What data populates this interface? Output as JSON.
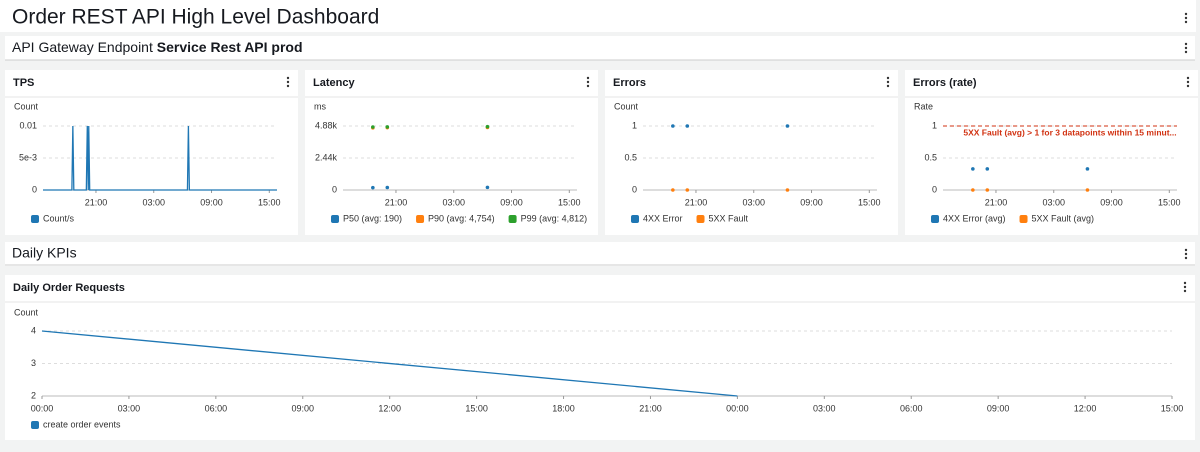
{
  "header": {
    "title": "Order REST API High Level Dashboard"
  },
  "sections": [
    {
      "label": "API Gateway Endpoint",
      "name": "Service Rest API prod"
    },
    {
      "label": "Daily KPIs"
    }
  ],
  "chart_data": [
    {
      "type": "line",
      "title": "TPS",
      "y_label": "Count",
      "grid": true,
      "ylim": [
        0,
        0.01
      ],
      "yticks": [
        0,
        {
          "value": 0.005,
          "label": "5e-3"
        },
        0.01
      ],
      "xlim": [
        15.5,
        39.8
      ],
      "xticks": [
        {
          "value": 21,
          "label": "21:00"
        },
        {
          "value": 27,
          "label": "03:00"
        },
        {
          "value": 33,
          "label": "09:00"
        },
        {
          "value": 39,
          "label": "15:00"
        }
      ],
      "series": [
        {
          "name": "Count/s",
          "color": "#1f77b4",
          "x": [
            15.5,
            18.5,
            18.6,
            18.7,
            20.0,
            20.1,
            20.2,
            20.25,
            20.35,
            30.5,
            30.6,
            30.7,
            39.8
          ],
          "values": [
            0,
            0,
            0.01,
            0,
            0,
            0.01,
            0,
            0.01,
            0,
            0,
            0.01,
            0,
            0
          ]
        }
      ]
    },
    {
      "type": "scatter",
      "title": "Latency",
      "y_label": "ms",
      "grid": true,
      "ylim": [
        0,
        4880
      ],
      "yticks": [
        0,
        {
          "value": 2440,
          "label": "2.44k"
        },
        {
          "value": 4880,
          "label": "4.88k"
        }
      ],
      "xlim": [
        15.5,
        39.8
      ],
      "xticks": [
        {
          "value": 21,
          "label": "21:00"
        },
        {
          "value": 27,
          "label": "03:00"
        },
        {
          "value": 33,
          "label": "09:00"
        },
        {
          "value": 39,
          "label": "15:00"
        }
      ],
      "series": [
        {
          "name": "P50 (avg: 190)",
          "color": "#1f77b4",
          "x": [
            18.6,
            20.1,
            30.5
          ],
          "values": [
            180,
            190,
            200
          ]
        },
        {
          "name": "P90 (avg: 4,754)",
          "color": "#ff7f0e",
          "x": [
            18.6,
            20.1,
            30.5
          ],
          "values": [
            4740,
            4754,
            4768
          ]
        },
        {
          "name": "P99 (avg: 4,812)",
          "color": "#2ca02c",
          "x": [
            18.6,
            20.1,
            30.5
          ],
          "values": [
            4800,
            4812,
            4824
          ]
        }
      ]
    },
    {
      "type": "scatter",
      "title": "Errors",
      "y_label": "Count",
      "grid": true,
      "ylim": [
        0,
        1
      ],
      "yticks": [
        0,
        0.5,
        1
      ],
      "xlim": [
        15.5,
        39.8
      ],
      "xticks": [
        {
          "value": 21,
          "label": "21:00"
        },
        {
          "value": 27,
          "label": "03:00"
        },
        {
          "value": 33,
          "label": "09:00"
        },
        {
          "value": 39,
          "label": "15:00"
        }
      ],
      "series": [
        {
          "name": "4XX Error",
          "color": "#1f77b4",
          "x": [
            18.6,
            20.1,
            30.5
          ],
          "values": [
            1,
            1,
            1
          ]
        },
        {
          "name": "5XX Fault",
          "color": "#ff7f0e",
          "x": [
            18.6,
            20.1,
            30.5
          ],
          "values": [
            0,
            0,
            0
          ]
        }
      ]
    },
    {
      "type": "scatter",
      "title": "Errors (rate)",
      "y_label": "Rate",
      "grid": true,
      "ylim": [
        0,
        1
      ],
      "yticks": [
        0,
        0.5,
        1
      ],
      "threshold": {
        "value": 1,
        "label": "5XX Fault (avg) > 1 for 3 datapoints within 15 minut..."
      },
      "xlim": [
        15.5,
        39.8
      ],
      "xticks": [
        {
          "value": 21,
          "label": "21:00"
        },
        {
          "value": 27,
          "label": "03:00"
        },
        {
          "value": 33,
          "label": "09:00"
        },
        {
          "value": 39,
          "label": "15:00"
        }
      ],
      "series": [
        {
          "name": "4XX Error (avg)",
          "color": "#1f77b4",
          "x": [
            18.6,
            20.1,
            30.5
          ],
          "values": [
            0.33,
            0.33,
            0.33
          ]
        },
        {
          "name": "5XX Fault (avg)",
          "color": "#ff7f0e",
          "x": [
            18.6,
            20.1,
            30.5
          ],
          "values": [
            0,
            0,
            0
          ]
        }
      ]
    },
    {
      "type": "line",
      "title": "Daily Order Requests",
      "y_label": "Count",
      "grid": true,
      "ylim": [
        2,
        4
      ],
      "yticks": [
        2,
        3,
        4
      ],
      "xlim": [
        0,
        39
      ],
      "xticks": [
        {
          "value": 0,
          "label": "00:00"
        },
        {
          "value": 3,
          "label": "03:00"
        },
        {
          "value": 6,
          "label": "06:00"
        },
        {
          "value": 9,
          "label": "09:00"
        },
        {
          "value": 12,
          "label": "12:00"
        },
        {
          "value": 15,
          "label": "15:00"
        },
        {
          "value": 18,
          "label": "18:00"
        },
        {
          "value": 21,
          "label": "21:00"
        },
        {
          "value": 24,
          "label": "00:00"
        },
        {
          "value": 27,
          "label": "03:00"
        },
        {
          "value": 30,
          "label": "06:00"
        },
        {
          "value": 33,
          "label": "09:00"
        },
        {
          "value": 36,
          "label": "12:00"
        },
        {
          "value": 39,
          "label": "15:00"
        }
      ],
      "series": [
        {
          "name": "create order events",
          "color": "#1f77b4",
          "x": [
            0,
            24
          ],
          "values": [
            4,
            2
          ]
        }
      ]
    }
  ]
}
